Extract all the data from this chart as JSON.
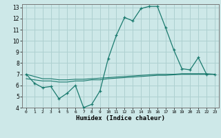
{
  "xlabel": "Humidex (Indice chaleur)",
  "x_values": [
    0,
    1,
    2,
    3,
    4,
    5,
    6,
    7,
    8,
    9,
    10,
    11,
    12,
    13,
    14,
    15,
    16,
    17,
    18,
    19,
    20,
    21,
    22,
    23
  ],
  "line1_y": [
    7.0,
    6.2,
    5.8,
    5.9,
    4.8,
    5.3,
    6.0,
    4.0,
    4.3,
    5.5,
    8.4,
    10.5,
    12.1,
    11.8,
    12.9,
    13.1,
    13.1,
    11.2,
    9.2,
    7.5,
    7.4,
    8.5,
    7.0,
    7.0
  ],
  "line2_y": [
    6.6,
    6.5,
    6.4,
    6.4,
    6.3,
    6.3,
    6.4,
    6.4,
    6.5,
    6.5,
    6.6,
    6.65,
    6.7,
    6.75,
    6.8,
    6.85,
    6.9,
    6.9,
    6.95,
    7.0,
    7.0,
    7.0,
    7.0,
    7.0
  ],
  "line3_y": [
    7.0,
    6.8,
    6.6,
    6.6,
    6.5,
    6.5,
    6.55,
    6.55,
    6.6,
    6.65,
    6.7,
    6.75,
    6.8,
    6.85,
    6.9,
    6.95,
    7.0,
    7.0,
    7.0,
    7.05,
    7.05,
    7.05,
    7.05,
    7.0
  ],
  "line_color": "#1a7a6e",
  "bg_color": "#cde8e8",
  "grid_color": "#aed0d0",
  "ylim": [
    4,
    13
  ],
  "yticks": [
    4,
    5,
    6,
    7,
    8,
    9,
    10,
    11,
    12,
    13
  ],
  "xticks": [
    0,
    1,
    2,
    3,
    4,
    5,
    6,
    7,
    8,
    9,
    10,
    11,
    12,
    13,
    14,
    15,
    16,
    17,
    18,
    19,
    20,
    21,
    22,
    23
  ]
}
